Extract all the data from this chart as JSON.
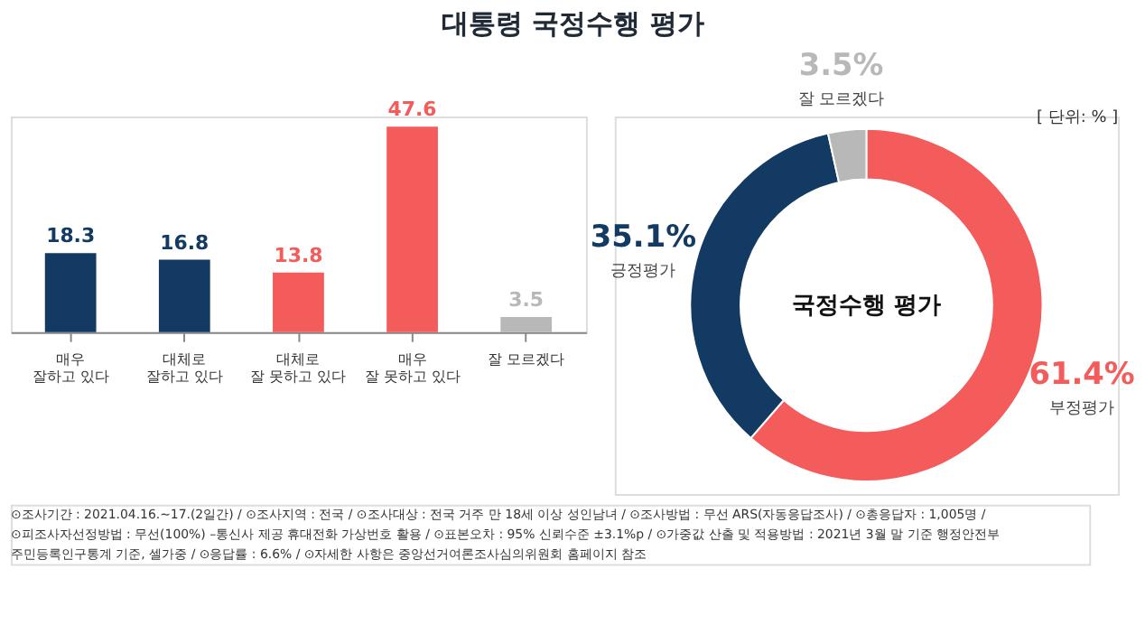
{
  "chart_data": [
    {
      "type": "bar",
      "title": "대통령 국정수행 평가",
      "categories": [
        "매우\n잘하고 있다",
        "대체로\n잘하고 있다",
        "대체로\n잘 못하고 있다",
        "매우\n잘 못하고 있다",
        "잘 모르겠다"
      ],
      "values": [
        18.3,
        16.8,
        13.8,
        47.6,
        3.5
      ],
      "colors": [
        "#123a63",
        "#123a63",
        "#f45b5b",
        "#f45b5b",
        "#b8b8b8"
      ],
      "data_labels": true,
      "annotations": [
        "⊙조사기간 : 2021.04.16.~17.(2일간)  /  ⊙조사지역 : 전국  /  ⊙조사대상 : 전국 거주 만 18세 이상 성인남녀  /  ⊙조사방법 : 무선 ARS(자동응답조사)  /  ⊙총응답자 : 1,005명 /",
        "⊙피조사자선정방법 : 무선(100%) –통신사 제공 휴대전화 가상번호 활용  /  ⊙표본오차 : 95% 신뢰수준 ±3.1%p  /  ⊙가중값 산출 및 적용방법 : 2021년 3월 말 기준 행정안전부",
        "주민등록인구통계 기준, 셀가중  /  ⊙응답률 : 6.6%  /  ⊙자세한 사항은 중앙선거여론조사심의위원회 홈페이지 참조"
      ]
    },
    {
      "type": "donut",
      "categories": [
        "부정평가",
        "긍정평가",
        "잘 모르겠다"
      ],
      "values": [
        61.4,
        35.1,
        3.5
      ],
      "colors": [
        "#f45b5b",
        "#123a63",
        "#b8b8b8"
      ],
      "value_labels": [
        "61.4%",
        "35.1%",
        "3.5%"
      ],
      "annotations": [
        "국정수행 평가",
        "[ 단위: % ]"
      ]
    }
  ]
}
